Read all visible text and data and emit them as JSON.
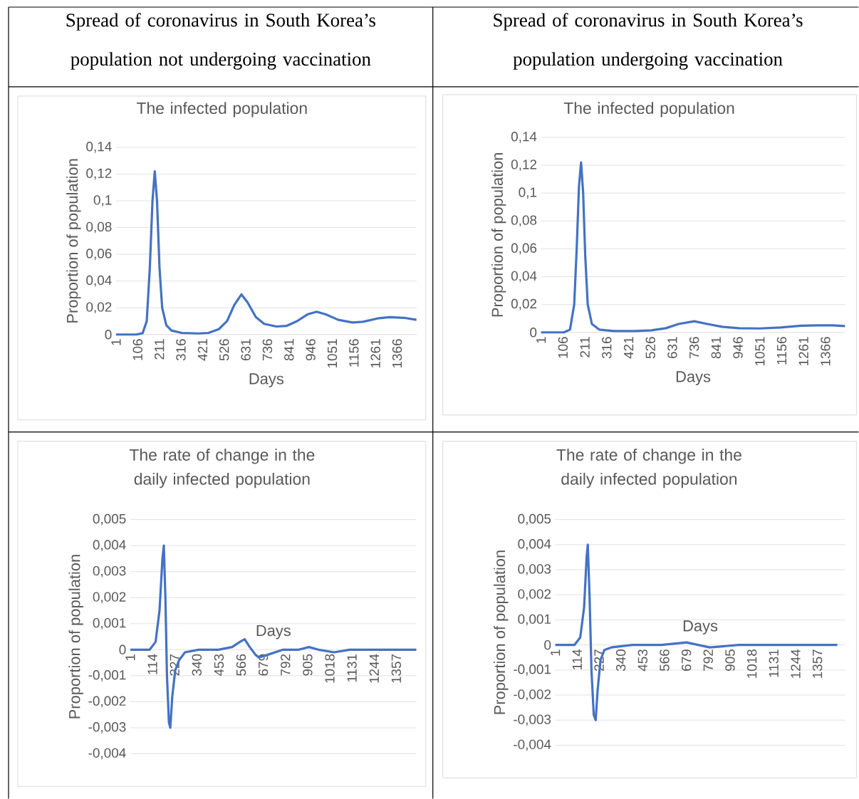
{
  "chart_data": [
    {
      "type": "other",
      "title": "Spread of coronavirus in South Korea’s population not undergoing vaccination"
    },
    {
      "type": "other",
      "title": "Spread of coronavirus in South Korea’s population undergoing vaccination"
    },
    {
      "type": "line",
      "title": "The infected population",
      "xlabel": "Days",
      "ylabel": "Proportion of population",
      "color": "#4472c4",
      "grid": "y",
      "xlim": [
        1,
        1460
      ],
      "ylim": [
        0,
        0.14
      ],
      "xticks": [
        1,
        106,
        211,
        316,
        421,
        526,
        631,
        736,
        841,
        946,
        1051,
        1156,
        1261,
        1366
      ],
      "yticks": [
        0,
        {
          "value": 0.02,
          "label": "0,02"
        },
        {
          "value": 0.04,
          "label": "0,04"
        },
        {
          "value": 0.06,
          "label": "0,06"
        },
        {
          "value": 0.08,
          "label": "0,08"
        },
        {
          "value": 0.1,
          "label": "0,1"
        },
        {
          "value": 0.12,
          "label": "0,12"
        },
        {
          "value": 0.14,
          "label": "0,14"
        }
      ],
      "x": [
        1,
        100,
        130,
        150,
        165,
        178,
        189,
        200,
        212,
        225,
        245,
        270,
        320,
        400,
        450,
        500,
        540,
        575,
        610,
        640,
        680,
        720,
        780,
        830,
        880,
        930,
        975,
        1020,
        1080,
        1150,
        1200,
        1270,
        1330,
        1400,
        1460
      ],
      "values": [
        0,
        0,
        0.001,
        0.01,
        0.05,
        0.1,
        0.122,
        0.1,
        0.05,
        0.02,
        0.007,
        0.003,
        0.0012,
        0.0008,
        0.0012,
        0.004,
        0.01,
        0.022,
        0.03,
        0.024,
        0.013,
        0.008,
        0.006,
        0.0065,
        0.01,
        0.015,
        0.017,
        0.015,
        0.011,
        0.009,
        0.0095,
        0.012,
        0.013,
        0.0125,
        0.011
      ]
    },
    {
      "type": "line",
      "title": "The infected population",
      "xlabel": "Days",
      "ylabel": "Proportion of population",
      "color": "#4472c4",
      "grid": "y",
      "xlim": [
        1,
        1460
      ],
      "ylim": [
        0,
        0.14
      ],
      "xticks": [
        1,
        106,
        211,
        316,
        421,
        526,
        631,
        736,
        841,
        946,
        1051,
        1156,
        1261,
        1366
      ],
      "yticks": [
        0,
        {
          "value": 0.02,
          "label": "0,02"
        },
        {
          "value": 0.04,
          "label": "0,04"
        },
        {
          "value": 0.06,
          "label": "0,06"
        },
        {
          "value": 0.08,
          "label": "0,08"
        },
        {
          "value": 0.1,
          "label": "0,1"
        },
        {
          "value": 0.12,
          "label": "0,12"
        },
        {
          "value": 0.14,
          "label": "0,14"
        }
      ],
      "x": [
        1,
        110,
        140,
        160,
        172,
        183,
        193,
        203,
        213,
        225,
        245,
        280,
        350,
        450,
        530,
        600,
        660,
        736,
        800,
        870,
        950,
        1050,
        1150,
        1250,
        1330,
        1400,
        1460
      ],
      "values": [
        0,
        0,
        0.002,
        0.02,
        0.06,
        0.105,
        0.122,
        0.1,
        0.055,
        0.02,
        0.006,
        0.002,
        0.001,
        0.001,
        0.0015,
        0.003,
        0.006,
        0.008,
        0.006,
        0.004,
        0.003,
        0.0028,
        0.0035,
        0.0048,
        0.005,
        0.005,
        0.0045
      ]
    },
    {
      "type": "line",
      "title": "The rate of change in the daily infected population",
      "xlabel": "Days",
      "ylabel": "Proportion of population",
      "color": "#4472c4",
      "grid": "y",
      "xlim": [
        1,
        1460
      ],
      "ylim": [
        -0.004,
        0.005
      ],
      "xticks": [
        1,
        114,
        227,
        340,
        453,
        566,
        679,
        792,
        905,
        1018,
        1131,
        1244,
        1357
      ],
      "yticks": [
        {
          "value": -0.004,
          "label": "-0,004"
        },
        {
          "value": -0.003,
          "label": "-0,003"
        },
        {
          "value": -0.002,
          "label": "-0,002"
        },
        {
          "value": -0.001,
          "label": "-0,001"
        },
        0,
        {
          "value": 0.001,
          "label": "0,001"
        },
        {
          "value": 0.002,
          "label": "0,002"
        },
        {
          "value": 0.003,
          "label": "0,003"
        },
        {
          "value": 0.004,
          "label": "0,004"
        },
        {
          "value": 0.005,
          "label": "0,005"
        }
      ],
      "x": [
        1,
        100,
        130,
        150,
        165,
        172,
        180,
        188,
        198,
        205,
        215,
        230,
        250,
        280,
        350,
        450,
        520,
        560,
        584,
        610,
        640,
        657,
        700,
        780,
        860,
        912,
        960,
        1040,
        1120,
        1240,
        1350,
        1459
      ],
      "values": [
        0,
        0,
        0.0003,
        0.0015,
        0.0035,
        0.004,
        0.002,
        -0.001,
        -0.0028,
        -0.003,
        -0.0018,
        -0.0008,
        -0.0004,
        -0.0001,
        0,
        0,
        0.0001,
        0.0003,
        0.0004,
        0.0001,
        -0.0002,
        -0.0003,
        -0.0002,
        0,
        0,
        0.0001,
        0,
        -0.0001,
        0,
        0,
        0,
        0
      ]
    },
    {
      "type": "line",
      "title": "The rate of change in the daily infected population",
      "xlabel": "Days",
      "ylabel": "Proportion of population",
      "color": "#4472c4",
      "grid": "y",
      "xlim": [
        1,
        1500
      ],
      "ylim": [
        -0.004,
        0.005
      ],
      "xticks": [
        1,
        114,
        227,
        340,
        453,
        566,
        679,
        792,
        905,
        1018,
        1131,
        1244,
        1357
      ],
      "yticks": [
        {
          "value": -0.004,
          "label": "-0,004"
        },
        {
          "value": -0.003,
          "label": "-0,003"
        },
        {
          "value": -0.002,
          "label": "-0,002"
        },
        {
          "value": -0.001,
          "label": "-0,001"
        },
        0,
        {
          "value": 0.001,
          "label": "0,001"
        },
        {
          "value": 0.002,
          "label": "0,002"
        },
        {
          "value": 0.003,
          "label": "0,003"
        },
        {
          "value": 0.004,
          "label": "0,004"
        },
        {
          "value": 0.005,
          "label": "0,005"
        }
      ],
      "x": [
        1,
        100,
        130,
        150,
        163,
        169,
        178,
        188,
        200,
        210,
        220,
        235,
        255,
        290,
        400,
        550,
        680,
        800,
        950,
        1200,
        1460
      ],
      "values": [
        0,
        0,
        0.0003,
        0.0015,
        0.0035,
        0.004,
        0.002,
        -0.001,
        -0.0028,
        -0.003,
        -0.0018,
        -0.0006,
        -0.0002,
        -0.0001,
        0,
        0,
        0.0001,
        -0.0001,
        0,
        0,
        0
      ]
    }
  ]
}
